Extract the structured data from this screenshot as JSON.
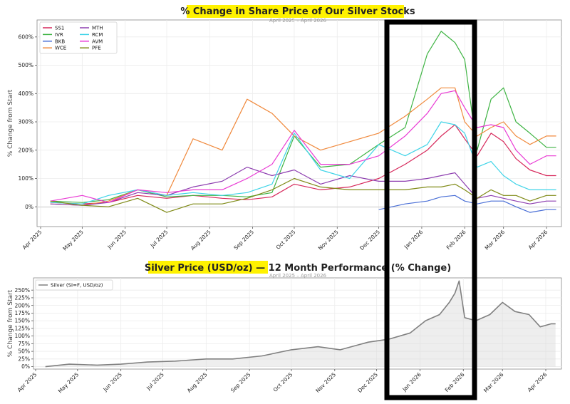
{
  "chart_data": [
    {
      "type": "line",
      "title": "% Change in Share Price of Our Silver Stocks",
      "subtitle": "April 2025 – April 2026",
      "xlabel": "",
      "ylabel": "% Change from Start",
      "x_ticks": [
        "Apr 2025",
        "May 2025",
        "Jun 2025",
        "Jul 2025",
        "Aug 2025",
        "Sep 2025",
        "Oct 2025",
        "Nov 2025",
        "Dec 2025",
        "Jan 2026",
        "Feb 2026",
        "Mar 2026",
        "Apr 2026"
      ],
      "y_ticks": [
        "0%",
        "100%",
        "200%",
        "300%",
        "400%",
        "500%",
        "600%"
      ],
      "ylim": [
        -70,
        660
      ],
      "grid": true,
      "legend_position": "top-left",
      "x": [
        "2025-04-08",
        "2025-05-01",
        "2025-05-20",
        "2025-06-10",
        "2025-07-01",
        "2025-07-20",
        "2025-08-10",
        "2025-08-28",
        "2025-09-15",
        "2025-10-01",
        "2025-10-20",
        "2025-11-10",
        "2025-12-01",
        "2025-12-20",
        "2026-01-05",
        "2026-01-15",
        "2026-01-25",
        "2026-02-01",
        "2026-02-10",
        "2026-02-20",
        "2026-03-01",
        "2026-03-10",
        "2026-03-20",
        "2026-04-01",
        "2026-04-08"
      ],
      "series": [
        {
          "name": "SS1",
          "color": "#d6275a",
          "values": [
            15,
            10,
            15,
            40,
            30,
            40,
            30,
            25,
            35,
            80,
            60,
            70,
            100,
            150,
            200,
            250,
            290,
            240,
            180,
            260,
            230,
            170,
            130,
            110,
            110
          ]
        },
        {
          "name": "IVR",
          "color": "#3fb444",
          "values": [
            20,
            15,
            25,
            60,
            35,
            40,
            40,
            35,
            50,
            250,
            140,
            150,
            220,
            280,
            540,
            620,
            580,
            520,
            200,
            380,
            420,
            300,
            260,
            210,
            210
          ]
        },
        {
          "name": "BKB",
          "color": "#4a6fd6",
          "values": [
            null,
            null,
            null,
            null,
            null,
            null,
            null,
            null,
            null,
            null,
            null,
            null,
            -10,
            10,
            20,
            35,
            40,
            20,
            10,
            20,
            20,
            0,
            -20,
            -10,
            -10
          ]
        },
        {
          "name": "WCE",
          "color": "#f0893c",
          "values": [
            10,
            5,
            20,
            60,
            40,
            240,
            200,
            380,
            330,
            250,
            200,
            230,
            260,
            320,
            380,
            420,
            420,
            300,
            250,
            280,
            300,
            250,
            220,
            250,
            250
          ]
        },
        {
          "name": "MTH",
          "color": "#8e3fb0",
          "values": [
            10,
            5,
            15,
            50,
            40,
            70,
            90,
            140,
            110,
            130,
            80,
            110,
            90,
            90,
            100,
            110,
            120,
            80,
            30,
            40,
            30,
            20,
            10,
            20,
            20
          ]
        },
        {
          "name": "RCM",
          "color": "#3fd4e8",
          "values": [
            15,
            10,
            40,
            60,
            40,
            50,
            40,
            50,
            80,
            260,
            130,
            100,
            220,
            180,
            220,
            300,
            290,
            260,
            140,
            160,
            110,
            80,
            60,
            60,
            60
          ]
        },
        {
          "name": "AVM",
          "color": "#e93ad4",
          "values": [
            20,
            40,
            15,
            60,
            50,
            60,
            60,
            100,
            150,
            270,
            150,
            150,
            180,
            250,
            330,
            400,
            410,
            350,
            280,
            290,
            280,
            200,
            150,
            180,
            180
          ]
        },
        {
          "name": "PFE",
          "color": "#7f8a16",
          "values": [
            20,
            5,
            0,
            30,
            -20,
            10,
            10,
            30,
            60,
            100,
            70,
            60,
            60,
            60,
            70,
            70,
            80,
            60,
            30,
            60,
            40,
            40,
            20,
            40,
            40
          ]
        }
      ]
    },
    {
      "type": "area",
      "title": "Silver Price (USD/oz) — 12 Month Performance (% Change)",
      "subtitle": "April 2025 – April 2026",
      "xlabel": "",
      "ylabel": "% Change from Start",
      "x_ticks": [
        "Apr 2025",
        "May 2025",
        "Jun 2025",
        "Jul 2025",
        "Aug 2025",
        "Sep 2025",
        "Oct 2025",
        "Nov 2025",
        "Dec 2025",
        "Jan 2026",
        "Feb 2026",
        "Mar 2026",
        "Apr 2026"
      ],
      "y_ticks": [
        "0%",
        "25%",
        "50%",
        "75%",
        "100%",
        "125%",
        "150%",
        "175%",
        "200%",
        "225%",
        "250%"
      ],
      "ylim": [
        -8,
        290
      ],
      "grid": true,
      "legend_position": "top-left",
      "x": [
        "2025-04-08",
        "2025-04-25",
        "2025-05-15",
        "2025-06-01",
        "2025-06-20",
        "2025-07-10",
        "2025-08-01",
        "2025-08-20",
        "2025-09-10",
        "2025-10-01",
        "2025-10-20",
        "2025-11-05",
        "2025-11-25",
        "2025-12-10",
        "2025-12-25",
        "2026-01-05",
        "2026-01-15",
        "2026-01-22",
        "2026-01-26",
        "2026-01-29",
        "2026-02-02",
        "2026-02-10",
        "2026-02-20",
        "2026-03-01",
        "2026-03-10",
        "2026-03-20",
        "2026-03-28",
        "2026-04-05",
        "2026-04-08"
      ],
      "series": [
        {
          "name": "Silver (SI=F, USD/oz)",
          "color": "#808080",
          "values": [
            0,
            8,
            5,
            8,
            15,
            18,
            25,
            25,
            35,
            55,
            65,
            55,
            80,
            90,
            110,
            150,
            170,
            210,
            240,
            280,
            160,
            150,
            170,
            210,
            180,
            170,
            130,
            140,
            140
          ]
        }
      ]
    }
  ]
}
